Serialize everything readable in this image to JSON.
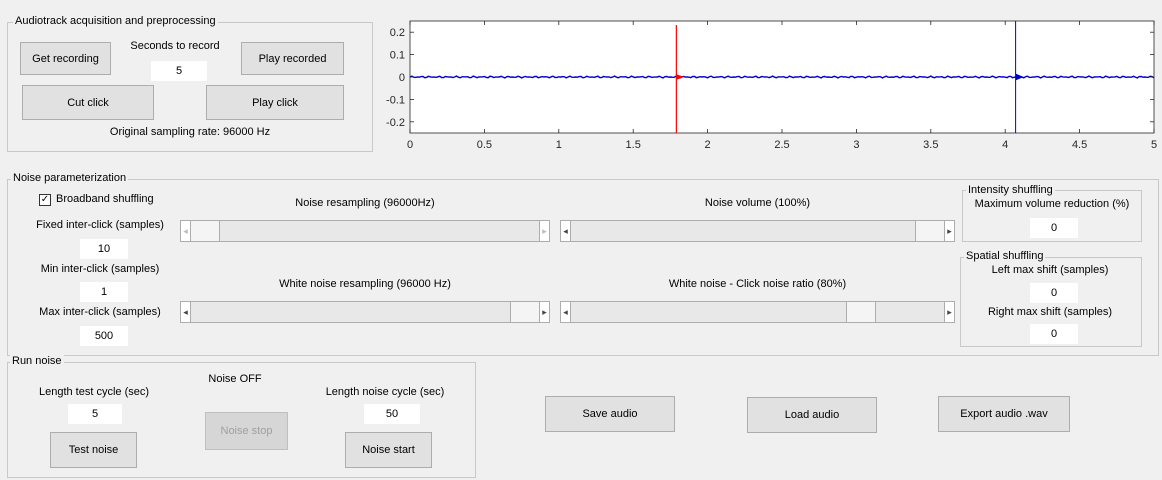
{
  "acquisition": {
    "title": "Audiotrack acquisition and preprocessing",
    "get_recording": "Get recording",
    "seconds_label": "Seconds to record",
    "seconds_value": "5",
    "play_recorded": "Play recorded",
    "cut_click": "Cut click",
    "play_click": "Play click",
    "sampling_rate": "Original sampling rate: 96000 Hz"
  },
  "chart_data": {
    "type": "line",
    "xlim": [
      0,
      5
    ],
    "ylim": [
      -0.25,
      0.25
    ],
    "x_ticks": [
      "0",
      "0.5",
      "1",
      "1.5",
      "2",
      "2.5",
      "3",
      "3.5",
      "4",
      "4.5",
      "5"
    ],
    "y_ticks": [
      "0.2",
      "0.1",
      "0",
      "-0.1",
      "-0.2"
    ],
    "series": [
      {
        "color": "#0000cc",
        "description": "audio waveform, near-zero amplitude with a click at x≈4.07 spanning full height",
        "click_x": 4.07
      },
      {
        "color": "#ff0000",
        "description": "click marker at x≈1.79 spanning full height",
        "click_x": 1.79
      }
    ]
  },
  "noise": {
    "title": "Noise parameterization",
    "broadband_label": "Broadband shuffling",
    "broadband_checked": true,
    "fixed_label": "Fixed inter-click (samples)",
    "fixed_value": "10",
    "min_label": "Min inter-click (samples)",
    "min_value": "1",
    "max_label": "Max inter-click (samples)",
    "max_value": "500",
    "resampling_label": "Noise resampling (96000Hz)",
    "resampling_level": 0.0,
    "volume_label": "Noise volume (100%)",
    "volume_level": 1.0,
    "white_resampling_label": "White noise resampling (96000 Hz)",
    "white_resampling_level": 1.0,
    "white_ratio_label": "White noise - Click noise ratio (80%)",
    "white_ratio_level": 0.8,
    "intensity_title": "Intensity shuffling",
    "max_volume_label": "Maximum volume reduction (%)",
    "max_volume_value": "0",
    "spatial_title": "Spatial shuffling",
    "left_shift_label": "Left max shift (samples)",
    "left_shift_value": "0",
    "right_shift_label": "Right max shift (samples)",
    "right_shift_value": "0"
  },
  "run": {
    "title": "Run noise",
    "length_test_label": "Length test cycle (sec)",
    "length_test_value": "5",
    "status": "Noise OFF",
    "length_noise_label": "Length noise cycle (sec)",
    "length_noise_value": "50",
    "test_noise": "Test noise",
    "noise_stop": "Noise stop",
    "noise_start": "Noise start"
  },
  "actions": {
    "save_audio": "Save audio",
    "load_audio": "Load audio",
    "export_audio": "Export audio .wav"
  }
}
